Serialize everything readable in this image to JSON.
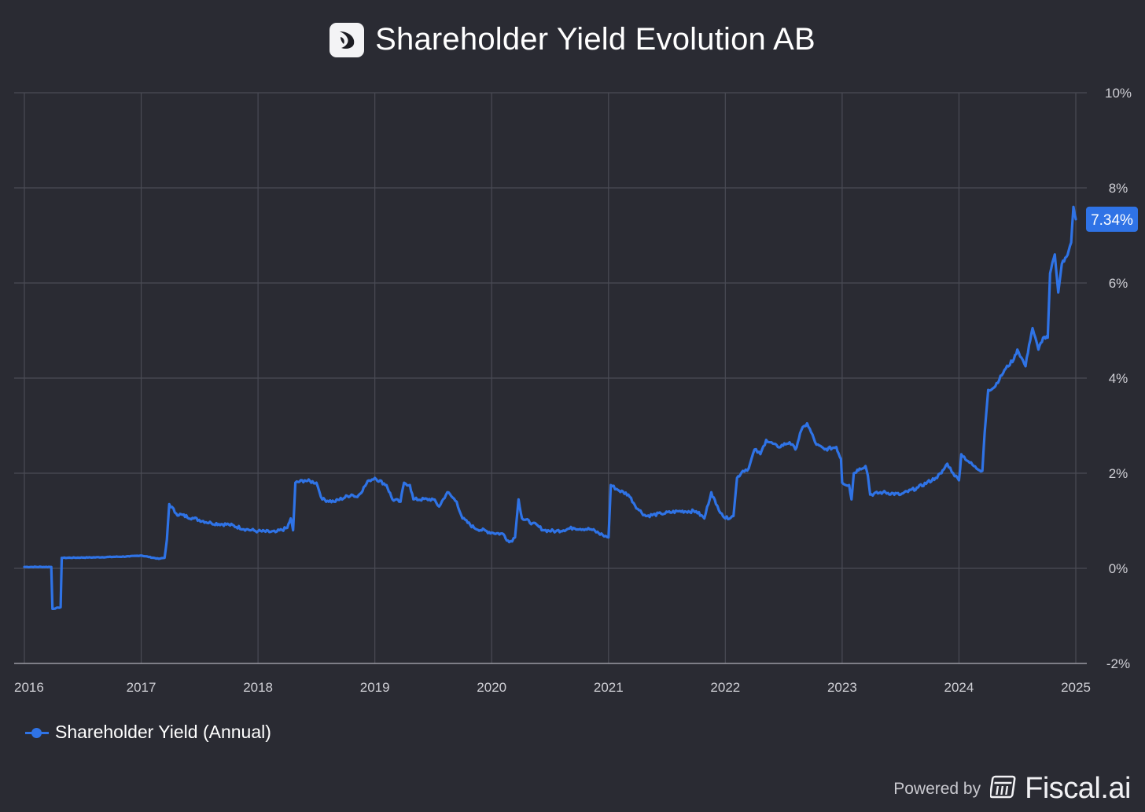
{
  "header": {
    "title": "Shareholder Yield Evolution AB",
    "logo_icon": "evolution-logo-icon"
  },
  "chart_data": {
    "type": "line",
    "title": "Shareholder Yield Evolution AB",
    "xlabel": "",
    "ylabel": "",
    "x_ticks": [
      "2016",
      "2017",
      "2018",
      "2019",
      "2020",
      "2021",
      "2022",
      "2023",
      "2024",
      "2025"
    ],
    "y_ticks": [
      "10%",
      "8%",
      "6%",
      "4%",
      "2%",
      "0%",
      "-2%"
    ],
    "xlim": [
      2016,
      2025
    ],
    "ylim": [
      -2,
      10
    ],
    "grid": true,
    "legend_position": "bottom-left",
    "last_value_label": "7.34%",
    "series": [
      {
        "name": "Shareholder Yield (Annual)",
        "color": "#2f73e6",
        "points": [
          [
            2016.0,
            0.03
          ],
          [
            2016.23,
            0.03
          ],
          [
            2016.24,
            -0.85
          ],
          [
            2016.31,
            -0.82
          ],
          [
            2016.32,
            0.22
          ],
          [
            2016.6,
            0.23
          ],
          [
            2016.9,
            0.25
          ],
          [
            2017.0,
            0.27
          ],
          [
            2017.15,
            0.2
          ],
          [
            2017.2,
            0.22
          ],
          [
            2017.22,
            0.6
          ],
          [
            2017.24,
            1.35
          ],
          [
            2017.3,
            1.15
          ],
          [
            2017.45,
            1.05
          ],
          [
            2017.6,
            0.95
          ],
          [
            2017.75,
            0.92
          ],
          [
            2017.9,
            0.82
          ],
          [
            2018.0,
            0.78
          ],
          [
            2018.15,
            0.76
          ],
          [
            2018.25,
            0.85
          ],
          [
            2018.28,
            1.05
          ],
          [
            2018.3,
            0.8
          ],
          [
            2018.32,
            1.8
          ],
          [
            2018.4,
            1.85
          ],
          [
            2018.5,
            1.8
          ],
          [
            2018.55,
            1.45
          ],
          [
            2018.65,
            1.4
          ],
          [
            2018.8,
            1.55
          ],
          [
            2018.85,
            1.5
          ],
          [
            2018.95,
            1.85
          ],
          [
            2019.0,
            1.9
          ],
          [
            2019.1,
            1.75
          ],
          [
            2019.15,
            1.45
          ],
          [
            2019.22,
            1.4
          ],
          [
            2019.25,
            1.8
          ],
          [
            2019.3,
            1.75
          ],
          [
            2019.33,
            1.45
          ],
          [
            2019.5,
            1.45
          ],
          [
            2019.55,
            1.3
          ],
          [
            2019.62,
            1.6
          ],
          [
            2019.7,
            1.4
          ],
          [
            2019.75,
            1.05
          ],
          [
            2019.85,
            0.85
          ],
          [
            2020.0,
            0.75
          ],
          [
            2020.1,
            0.72
          ],
          [
            2020.15,
            0.55
          ],
          [
            2020.2,
            0.65
          ],
          [
            2020.23,
            1.45
          ],
          [
            2020.26,
            1.05
          ],
          [
            2020.35,
            0.95
          ],
          [
            2020.45,
            0.8
          ],
          [
            2020.55,
            0.78
          ],
          [
            2020.7,
            0.85
          ],
          [
            2020.85,
            0.82
          ],
          [
            2020.95,
            0.7
          ],
          [
            2021.0,
            0.65
          ],
          [
            2021.02,
            1.75
          ],
          [
            2021.08,
            1.65
          ],
          [
            2021.17,
            1.55
          ],
          [
            2021.25,
            1.25
          ],
          [
            2021.32,
            1.1
          ],
          [
            2021.45,
            1.15
          ],
          [
            2021.6,
            1.2
          ],
          [
            2021.75,
            1.2
          ],
          [
            2021.82,
            1.05
          ],
          [
            2021.88,
            1.6
          ],
          [
            2021.92,
            1.35
          ],
          [
            2021.97,
            1.15
          ],
          [
            2022.0,
            1.05
          ],
          [
            2022.07,
            1.1
          ],
          [
            2022.1,
            1.9
          ],
          [
            2022.15,
            2.05
          ],
          [
            2022.2,
            2.1
          ],
          [
            2022.25,
            2.5
          ],
          [
            2022.3,
            2.4
          ],
          [
            2022.35,
            2.7
          ],
          [
            2022.45,
            2.55
          ],
          [
            2022.55,
            2.65
          ],
          [
            2022.6,
            2.5
          ],
          [
            2022.65,
            2.9
          ],
          [
            2022.7,
            3.05
          ],
          [
            2022.78,
            2.6
          ],
          [
            2022.85,
            2.5
          ],
          [
            2022.95,
            2.55
          ],
          [
            2022.99,
            2.3
          ],
          [
            2023.0,
            1.8
          ],
          [
            2023.06,
            1.75
          ],
          [
            2023.08,
            1.45
          ],
          [
            2023.1,
            2.0
          ],
          [
            2023.15,
            2.1
          ],
          [
            2023.2,
            2.15
          ],
          [
            2023.22,
            1.95
          ],
          [
            2023.24,
            1.55
          ],
          [
            2023.35,
            1.6
          ],
          [
            2023.5,
            1.55
          ],
          [
            2023.65,
            1.7
          ],
          [
            2023.8,
            1.9
          ],
          [
            2023.85,
            2.0
          ],
          [
            2023.9,
            2.2
          ],
          [
            2023.95,
            2.0
          ],
          [
            2024.0,
            1.85
          ],
          [
            2024.02,
            2.4
          ],
          [
            2024.08,
            2.25
          ],
          [
            2024.15,
            2.1
          ],
          [
            2024.2,
            2.05
          ],
          [
            2024.22,
            2.85
          ],
          [
            2024.25,
            3.75
          ],
          [
            2024.3,
            3.8
          ],
          [
            2024.4,
            4.2
          ],
          [
            2024.47,
            4.4
          ],
          [
            2024.5,
            4.6
          ],
          [
            2024.57,
            4.25
          ],
          [
            2024.6,
            4.7
          ],
          [
            2024.63,
            5.05
          ],
          [
            2024.68,
            4.6
          ],
          [
            2024.72,
            4.85
          ],
          [
            2024.76,
            4.85
          ],
          [
            2024.78,
            6.2
          ],
          [
            2024.82,
            6.6
          ],
          [
            2024.85,
            5.8
          ],
          [
            2024.88,
            6.4
          ],
          [
            2024.92,
            6.55
          ],
          [
            2024.96,
            6.85
          ],
          [
            2024.98,
            7.6
          ],
          [
            2025.0,
            7.34
          ]
        ]
      }
    ]
  },
  "legend": {
    "label": "Shareholder Yield (Annual)"
  },
  "footer": {
    "powered_by": "Powered by",
    "brand": "Fiscal.ai",
    "brand_icon": "fiscal-calculator-icon"
  }
}
